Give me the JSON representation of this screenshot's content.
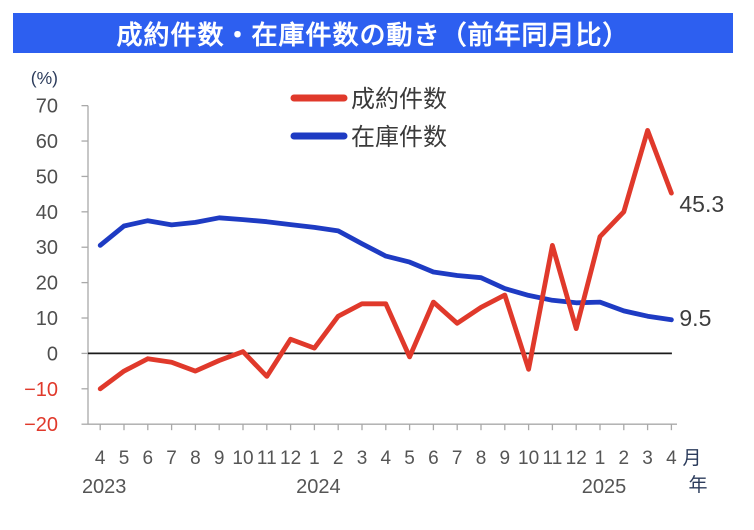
{
  "header": {
    "title": "成約件数・在庫件数の動き（前年同月比）",
    "bg_color": "#2d5ff0",
    "text_color": "#ffffff"
  },
  "chart_data": {
    "type": "line",
    "title": "成約件数・在庫件数の動き（前年同月比）",
    "unit_label": "(%)",
    "month_axis_suffix": "月",
    "year_axis_suffix": "年",
    "ylim": [
      -20,
      70
    ],
    "ytick_step": 10,
    "grid": false,
    "legend_position": "top-center",
    "months": [
      4,
      5,
      6,
      7,
      8,
      9,
      10,
      11,
      12,
      1,
      2,
      3,
      4,
      5,
      6,
      7,
      8,
      9,
      10,
      11,
      12,
      1,
      2,
      3,
      4
    ],
    "year_markers": [
      {
        "label": "2023",
        "index": 0
      },
      {
        "label": "2024",
        "index": 9
      },
      {
        "label": "2025",
        "index": 21
      }
    ],
    "series": [
      {
        "name": "成約件数",
        "color": "#e0392b",
        "end_label": "45.3",
        "values": [
          -10,
          -5,
          -1.5,
          -2.5,
          -5,
          -2,
          0.5,
          -6.5,
          4,
          1.5,
          10.5,
          14,
          14,
          -1,
          14.5,
          8.5,
          13,
          16.5,
          -4.5,
          30.5,
          7,
          33,
          40,
          63,
          45.3
        ]
      },
      {
        "name": "在庫件数",
        "color": "#1e3bc3",
        "end_label": "9.5",
        "values": [
          30.5,
          36,
          37.5,
          36.3,
          37,
          38.3,
          37.8,
          37.2,
          36.4,
          35.6,
          34.6,
          31,
          27.5,
          25.8,
          23,
          22,
          21.4,
          18.3,
          16.4,
          15,
          14.3,
          14.5,
          12,
          10.5,
          9.5
        ]
      }
    ],
    "axis_colors": {
      "tick_label": "#4f4f4f",
      "negative_tick_label": "#e0392b",
      "unit_label": "#2c3c5c",
      "axis_line": "#a9a9a9",
      "zero_line": "#1a1a1a",
      "month_label": "#555555",
      "year_label": "#555555",
      "legend_text": "#3a3a3a",
      "end_label": "#3d3d3d"
    }
  }
}
